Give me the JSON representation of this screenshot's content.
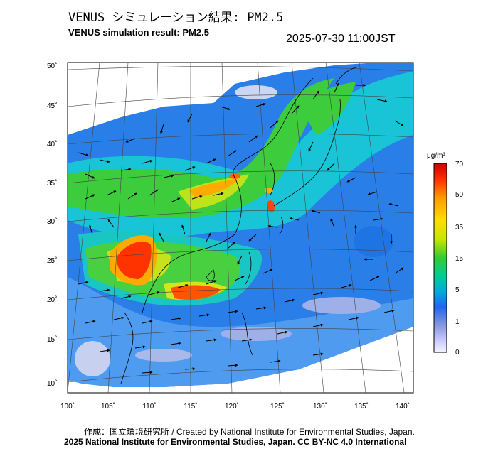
{
  "title_jp": "VENUS シミュレーション結果: PM2.5",
  "title_en": "VENUS simulation result: PM2.5",
  "timestamp": "2025-07-30 11:00JST",
  "map": {
    "lat_labels": [
      "50˚",
      "45˚",
      "40˚",
      "35˚",
      "30˚",
      "25˚",
      "20˚",
      "15˚",
      "10˚"
    ],
    "lon_labels": [
      "100˚",
      "105˚",
      "110˚",
      "115˚",
      "120˚",
      "125˚",
      "130˚",
      "135˚",
      "140˚"
    ]
  },
  "colorbar": {
    "unit": "μg/m³",
    "tick_labels": [
      "70",
      "50",
      "35",
      "15",
      "5",
      "1",
      "0"
    ],
    "colors": [
      "#cc0000",
      "#ff3300",
      "#ff9900",
      "#ffdd00",
      "#c8e600",
      "#33cc33",
      "#00cc99",
      "#00aadd",
      "#2266ee",
      "#8899dd",
      "#ccccff",
      "#f4f4ff"
    ]
  },
  "credits": {
    "line1": "作成：国立環境研究所 / Created by National Institute for Environmental Studies, Japan.",
    "line2": "2025 National Institute for Environmental Studies, Japan. CC BY-NC 4.0 International"
  }
}
